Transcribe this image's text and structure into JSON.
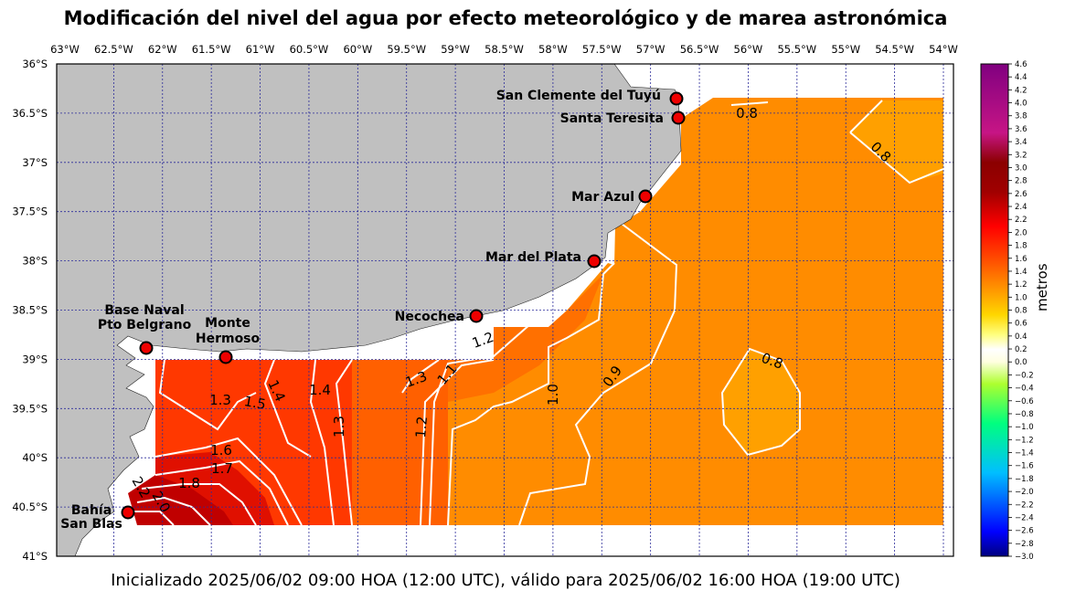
{
  "title": "Modificación del nivel del agua por efecto meteorológico y de marea astronómica",
  "footer": "Inicializado 2025/06/02 09:00 HOA (12:00 UTC), válido para 2025/06/02 16:00 HOA (19:00 UTC)",
  "colorbar": {
    "label": "metros",
    "ticks": [
      "4.6",
      "4.4",
      "4.2",
      "4.0",
      "3.8",
      "3.6",
      "3.4",
      "3.2",
      "3.0",
      "2.8",
      "2.6",
      "2.4",
      "2.2",
      "2.0",
      "1.8",
      "1.6",
      "1.4",
      "1.2",
      "1.0",
      "0.8",
      "0.6",
      "0.4",
      "0.2",
      "0.0",
      "−0.2",
      "−0.4",
      "−0.6",
      "−0.8",
      "−1.0",
      "−1.2",
      "−1.4",
      "−1.6",
      "−1.8",
      "−2.0",
      "−2.2",
      "−2.4",
      "−2.6",
      "−2.8",
      "−3.0"
    ]
  },
  "lon_labels": [
    "63°W",
    "62.5°W",
    "62°W",
    "61.5°W",
    "61°W",
    "60.5°W",
    "60°W",
    "59.5°W",
    "59°W",
    "58.5°W",
    "58°W",
    "57.5°W",
    "57°W",
    "56.5°W",
    "56°W",
    "55.5°W",
    "55°W",
    "54.5°W",
    "54°W"
  ],
  "lat_labels": [
    "36°S",
    "36.5°S",
    "37°S",
    "37.5°S",
    "38°S",
    "38.5°S",
    "39°S",
    "39.5°S",
    "40°S",
    "40.5°S",
    "41°S"
  ],
  "stations": [
    {
      "name": "San Clemente del Tuyú"
    },
    {
      "name": "Santa Teresita"
    },
    {
      "name": "Mar Azul"
    },
    {
      "name": "Mar del Plata"
    },
    {
      "name": "Necochea"
    },
    {
      "name_line1": "Base Naval",
      "name_line2": "Pto Belgrano"
    },
    {
      "name_line1": "Monte",
      "name_line2": "Hermoso"
    },
    {
      "name_line1": "Bahía",
      "name_line2": "San Blas"
    }
  ],
  "contour_labels": [
    "0.8",
    "0.8",
    "0.8",
    "0.9",
    "1.0",
    "1.1",
    "1.2",
    "1.3",
    "1.2",
    "1.3",
    "1.4",
    "1.4",
    "1.5",
    "1.3",
    "1.6",
    "1.7",
    "1.8",
    "2.0",
    "2.2"
  ],
  "colors": {
    "land": "#c0c0c0",
    "field_orange": "#ff8c00",
    "field_light": "#ffa000",
    "field_mid": "#ff6a00",
    "field_red": "#e01000",
    "contour": "#ffffff",
    "marker": "#ee0000"
  }
}
